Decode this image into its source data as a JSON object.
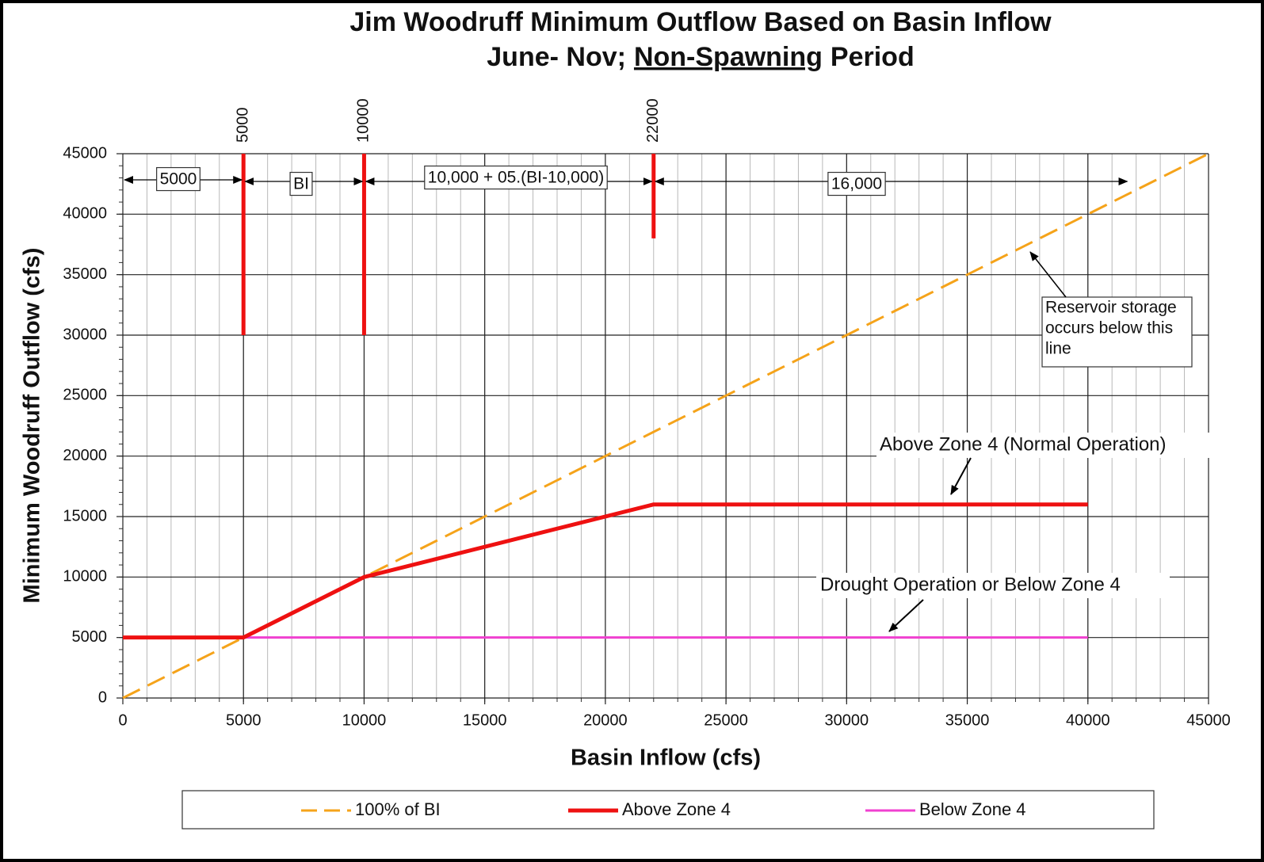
{
  "chart_data": {
    "type": "line",
    "title": "Jim Woodruff Minimum Outflow Based on Basin Inflow",
    "subtitle": [
      "June- Nov;",
      "Non-Spawning",
      "Period"
    ],
    "xlabel": "Basin Inflow (cfs)",
    "ylabel": "Minimum Woodruff Outflow (cfs)",
    "xlim": [
      0,
      45000
    ],
    "ylim": [
      0,
      45000
    ],
    "xticks": [
      0,
      5000,
      10000,
      15000,
      20000,
      25000,
      30000,
      35000,
      40000,
      45000
    ],
    "yticks": [
      0,
      5000,
      10000,
      15000,
      20000,
      25000,
      30000,
      35000,
      40000,
      45000
    ],
    "xminor": 1000,
    "yminor": 1000,
    "grid": true,
    "legend": "bottom",
    "series": [
      {
        "name": "100% of BI",
        "color": "#f5a31a",
        "dashed": true,
        "x": [
          0,
          45000
        ],
        "values": [
          0,
          45000
        ]
      },
      {
        "name": "Above Zone 4",
        "color": "#ee1111",
        "dashed": false,
        "x": [
          0,
          5000,
          10000,
          22000,
          40000
        ],
        "values": [
          5000,
          5000,
          10000,
          16000,
          16000
        ]
      },
      {
        "name": "Below Zone 4",
        "color": "#f040d0",
        "dashed": false,
        "x": [
          0,
          40000
        ],
        "values": [
          5000,
          5000
        ]
      }
    ],
    "markers": [
      {
        "x": 5000,
        "ymin": 30000,
        "ymax": 45000
      },
      {
        "x": 10000,
        "ymin": 30000,
        "ymax": 45000
      },
      {
        "x": 22000,
        "ymin": 38000,
        "ymax": 45000
      }
    ],
    "ranges": [
      {
        "text": "5000",
        "from": 0,
        "to": 5000
      },
      {
        "text": "BI",
        "from": 5000,
        "to": 10000
      },
      {
        "text": "10,000 + 05.(BI-10,000)",
        "from": 10000,
        "to": 22000
      },
      {
        "text": "16,000",
        "from": 22000,
        "to": 41700
      }
    ],
    "callouts": [
      {
        "lines": [
          "Reservoir storage",
          "occurs below this",
          "line"
        ]
      },
      {
        "lines": [
          "Above Zone 4 (Normal Operation)"
        ]
      },
      {
        "lines": [
          "Drought Operation or Below Zone 4"
        ]
      }
    ]
  }
}
